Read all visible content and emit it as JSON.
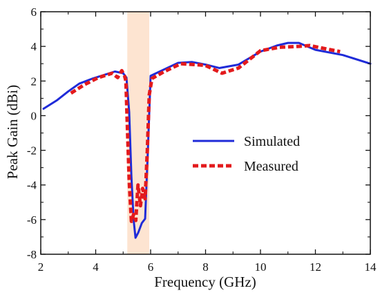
{
  "chart_data": {
    "type": "line",
    "xlabel": "Frequency  (GHz)",
    "ylabel": "Peak Gain (dBi)",
    "xlim": [
      2,
      14
    ],
    "ylim": [
      -8,
      6
    ],
    "x_ticks": [
      2,
      4,
      6,
      8,
      10,
      12,
      14
    ],
    "y_ticks": [
      -8,
      -6,
      -4,
      -2,
      0,
      2,
      4,
      6
    ],
    "grid": false,
    "legend_position": "right-middle",
    "shaded_band": {
      "x_start": 5.15,
      "x_end": 5.95,
      "color": "#fde3cf"
    },
    "series": [
      {
        "name": "Simulated",
        "color": "#1f2bd8",
        "line_style": "solid",
        "points": [
          [
            2.1,
            0.4
          ],
          [
            2.6,
            0.9
          ],
          [
            3.0,
            1.4
          ],
          [
            3.4,
            1.85
          ],
          [
            3.9,
            2.15
          ],
          [
            4.3,
            2.35
          ],
          [
            4.7,
            2.55
          ],
          [
            5.0,
            2.45
          ],
          [
            5.12,
            2.2
          ],
          [
            5.22,
            0.2
          ],
          [
            5.3,
            -3.5
          ],
          [
            5.38,
            -6.0
          ],
          [
            5.45,
            -7.05
          ],
          [
            5.55,
            -6.75
          ],
          [
            5.68,
            -6.2
          ],
          [
            5.8,
            -5.95
          ],
          [
            5.9,
            -2.0
          ],
          [
            6.0,
            2.3
          ],
          [
            6.4,
            2.6
          ],
          [
            7.0,
            3.05
          ],
          [
            7.5,
            3.1
          ],
          [
            8.0,
            2.95
          ],
          [
            8.5,
            2.75
          ],
          [
            9.2,
            2.95
          ],
          [
            10.0,
            3.7
          ],
          [
            10.6,
            4.05
          ],
          [
            11.0,
            4.2
          ],
          [
            11.4,
            4.2
          ],
          [
            12.0,
            3.8
          ],
          [
            13.0,
            3.5
          ],
          [
            14.0,
            3.0
          ]
        ]
      },
      {
        "name": "Measured",
        "color": "#e31a1c",
        "line_style": "dashed",
        "points": [
          [
            3.1,
            1.3
          ],
          [
            3.6,
            1.8
          ],
          [
            4.1,
            2.2
          ],
          [
            4.6,
            2.45
          ],
          [
            4.8,
            2.2
          ],
          [
            4.95,
            2.6
          ],
          [
            5.05,
            2.3
          ],
          [
            5.1,
            2.0
          ],
          [
            5.15,
            -0.5
          ],
          [
            5.22,
            -3.8
          ],
          [
            5.3,
            -6.1
          ],
          [
            5.38,
            -5.7
          ],
          [
            5.46,
            -6.05
          ],
          [
            5.54,
            -4.0
          ],
          [
            5.63,
            -5.2
          ],
          [
            5.71,
            -4.2
          ],
          [
            5.8,
            -4.8
          ],
          [
            5.88,
            -2.0
          ],
          [
            5.95,
            1.2
          ],
          [
            6.05,
            2.15
          ],
          [
            6.5,
            2.55
          ],
          [
            7.1,
            3.0
          ],
          [
            7.6,
            2.95
          ],
          [
            8.0,
            2.9
          ],
          [
            8.6,
            2.45
          ],
          [
            9.2,
            2.75
          ],
          [
            10.0,
            3.75
          ],
          [
            10.7,
            3.95
          ],
          [
            11.4,
            4.0
          ],
          [
            11.8,
            4.05
          ],
          [
            12.4,
            3.85
          ],
          [
            12.9,
            3.7
          ]
        ]
      }
    ]
  }
}
